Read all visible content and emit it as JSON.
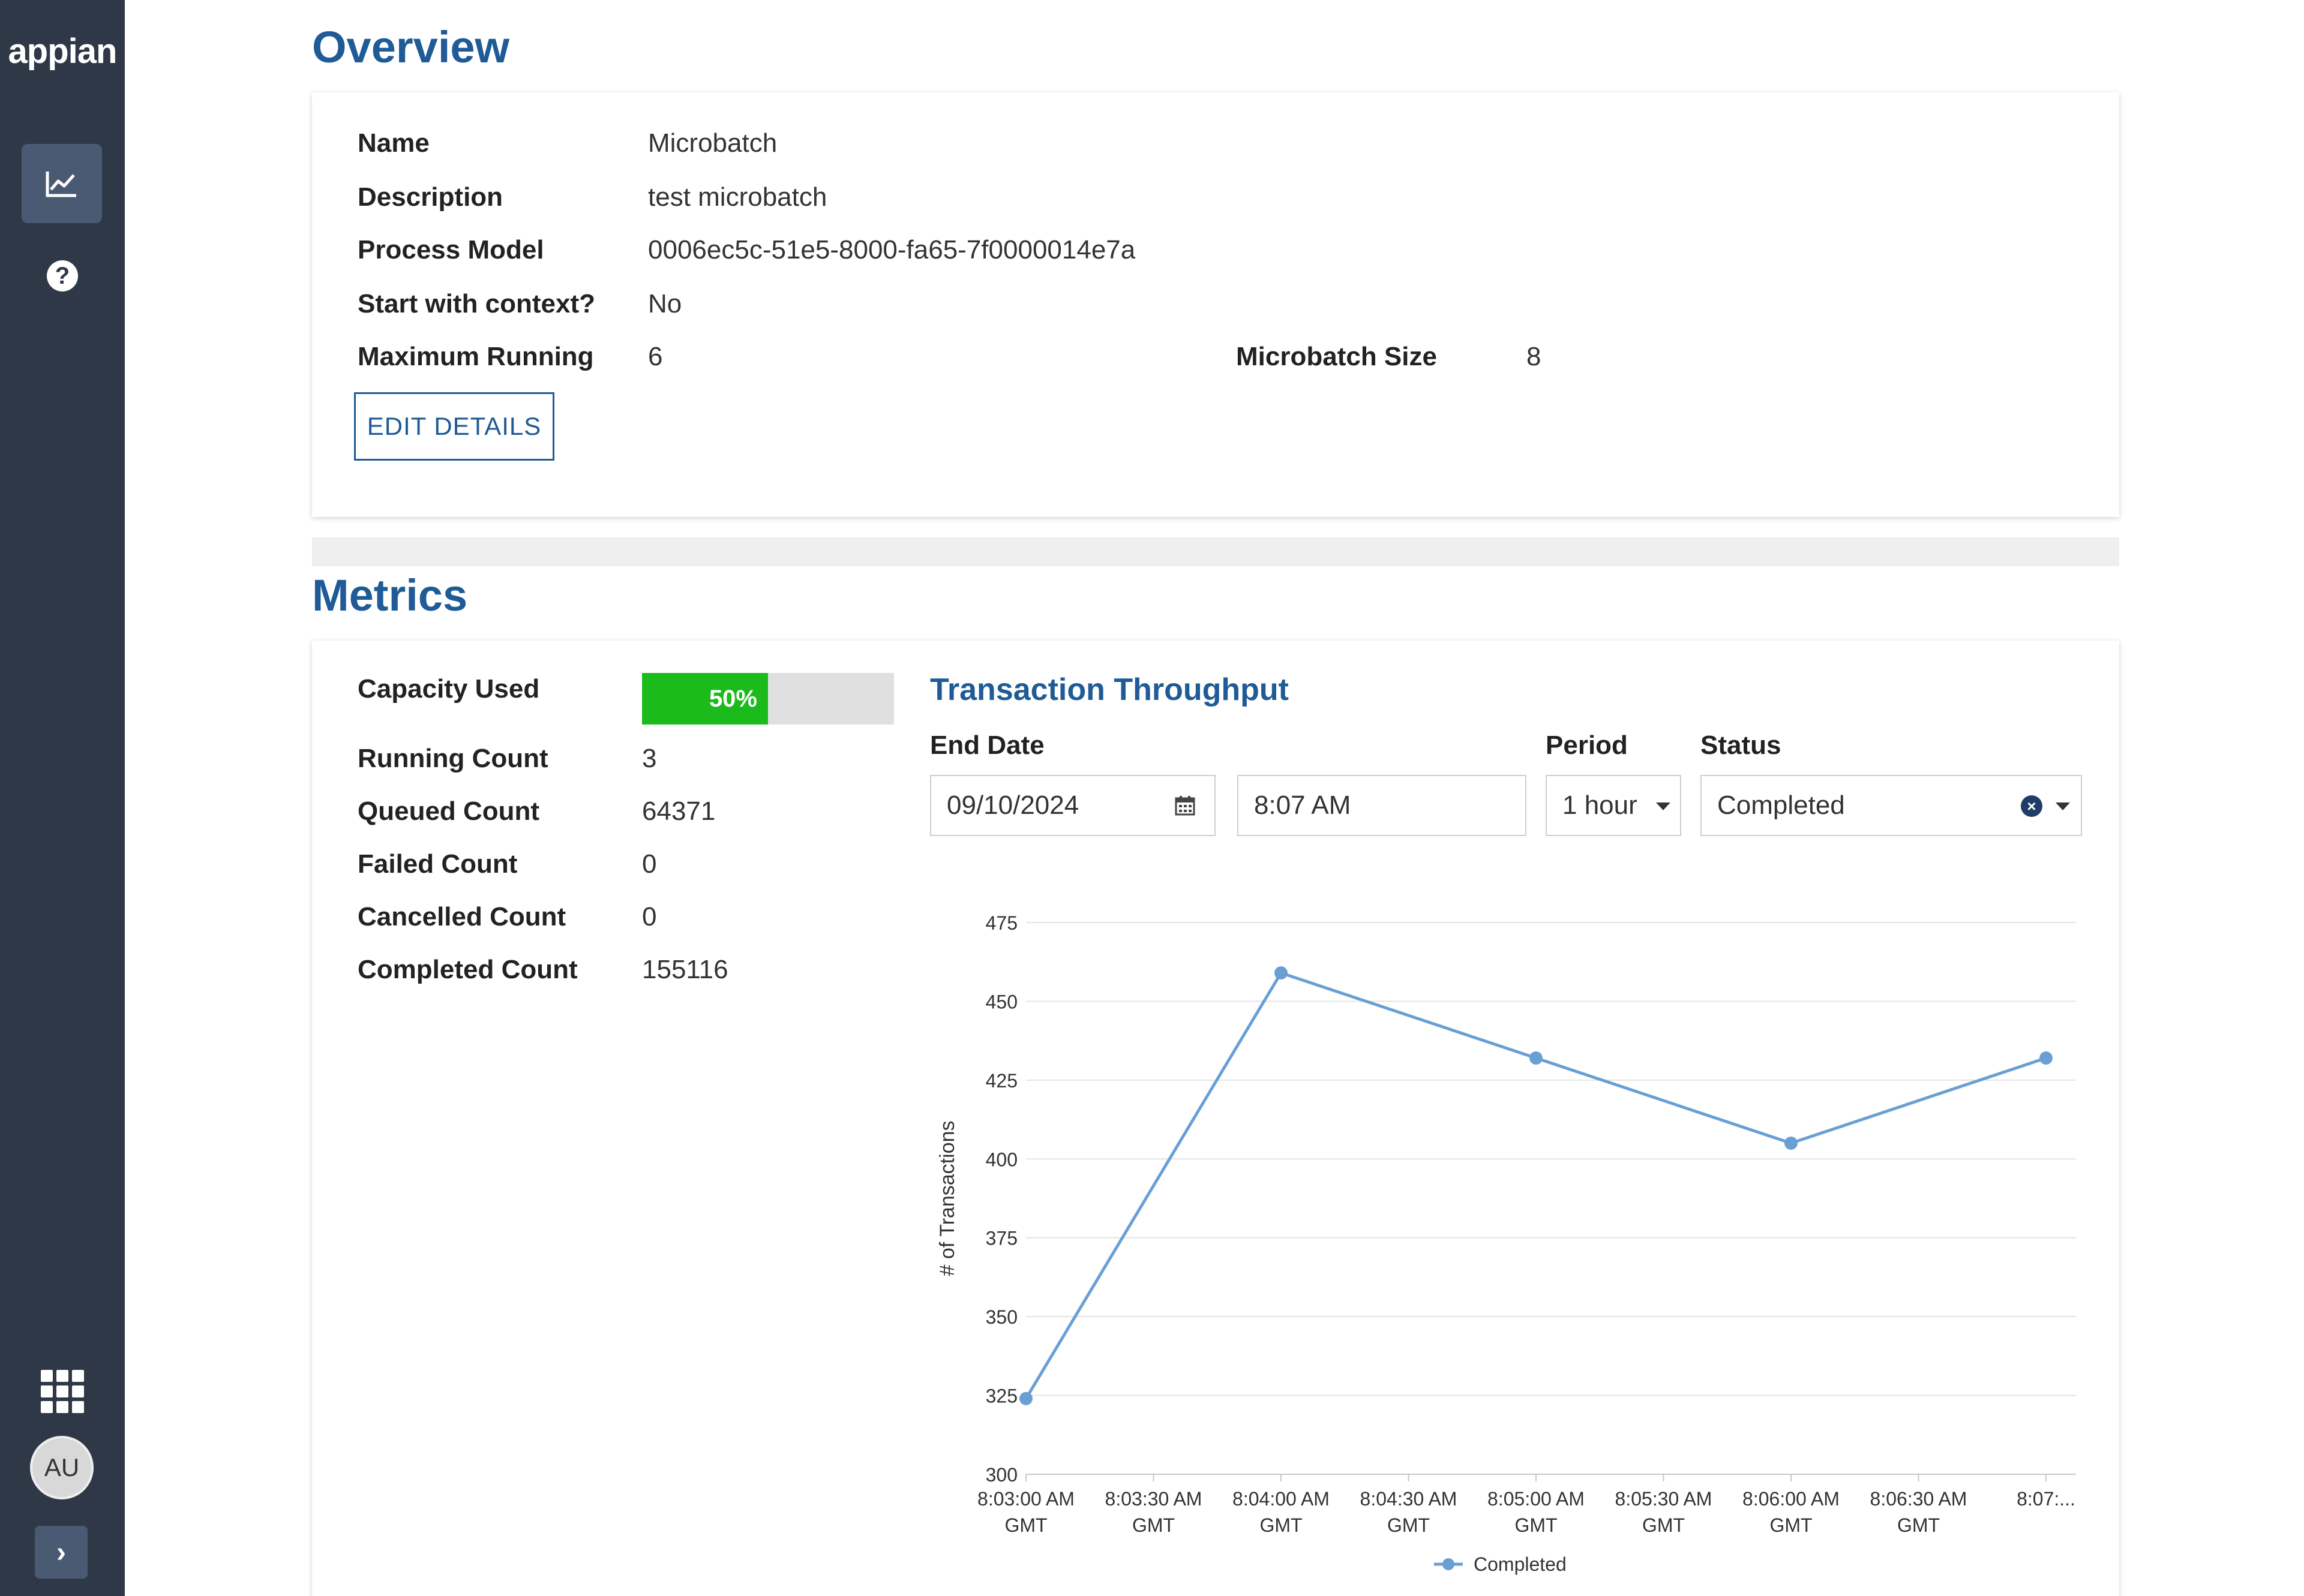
{
  "sidebar": {
    "logo": "appian",
    "avatar_initials": "AU"
  },
  "overview": {
    "title": "Overview",
    "fields": {
      "name_label": "Name",
      "name_value": "Microbatch",
      "description_label": "Description",
      "description_value": "test microbatch",
      "process_model_label": "Process Model",
      "process_model_value": "0006ec5c-51e5-8000-fa65-7f0000014e7a",
      "start_context_label": "Start with context?",
      "start_context_value": "No",
      "max_running_label": "Maximum Running",
      "max_running_value": "6",
      "microbatch_size_label": "Microbatch Size",
      "microbatch_size_value": "8"
    },
    "edit_button": "EDIT DETAILS"
  },
  "metrics": {
    "title": "Metrics",
    "capacity_label": "Capacity Used",
    "capacity_value": 0.5,
    "capacity_text": "50%",
    "running_label": "Running Count",
    "running_value": "3",
    "queued_label": "Queued Count",
    "queued_value": "64371",
    "failed_label": "Failed Count",
    "failed_value": "0",
    "cancelled_label": "Cancelled Count",
    "cancelled_value": "0",
    "completed_label": "Completed Count",
    "completed_value": "155116"
  },
  "throughput": {
    "title": "Transaction Throughput",
    "end_date_label": "End Date",
    "end_date_value": "09/10/2024",
    "time_value": "8:07 AM",
    "period_label": "Period",
    "period_value": "1 hour",
    "status_label": "Status",
    "status_value": "Completed"
  },
  "colors": {
    "accent": "#1f5b96",
    "sidebar": "#2e3847",
    "capacity_fill": "#1cbb1c",
    "series_line": "#6a9fd4"
  },
  "chart_data": {
    "type": "line",
    "title": "",
    "xlabel": "",
    "ylabel": "# of Transactions",
    "ylim": [
      300,
      475
    ],
    "yticks": [
      300,
      325,
      350,
      375,
      400,
      425,
      450,
      475
    ],
    "categories": [
      "8:03:00 AM GMT",
      "8:03:30 AM GMT",
      "8:04:00 AM GMT",
      "8:04:30 AM GMT",
      "8:05:00 AM GMT",
      "8:05:30 AM GMT",
      "8:06:00 AM GMT",
      "8:06:30 AM GMT",
      "8:07:..."
    ],
    "category_lines": [
      [
        "8:03:00 AM",
        "GMT"
      ],
      [
        "8:03:30 AM",
        "GMT"
      ],
      [
        "8:04:00 AM",
        "GMT"
      ],
      [
        "8:04:30 AM",
        "GMT"
      ],
      [
        "8:05:00 AM",
        "GMT"
      ],
      [
        "8:05:30 AM",
        "GMT"
      ],
      [
        "8:06:00 AM",
        "GMT"
      ],
      [
        "8:06:30 AM",
        "GMT"
      ],
      [
        "8:07:...",
        ""
      ]
    ],
    "series": [
      {
        "name": "Completed",
        "points": [
          {
            "x": "8:03:00 AM GMT",
            "y": 324
          },
          {
            "x": "8:04:00 AM GMT",
            "y": 459
          },
          {
            "x": "8:05:00 AM GMT",
            "y": 432
          },
          {
            "x": "8:06:00 AM GMT",
            "y": 405
          },
          {
            "x": "8:07:...",
            "y": 432
          }
        ]
      }
    ],
    "grid": true,
    "legend": "bottom-center"
  }
}
